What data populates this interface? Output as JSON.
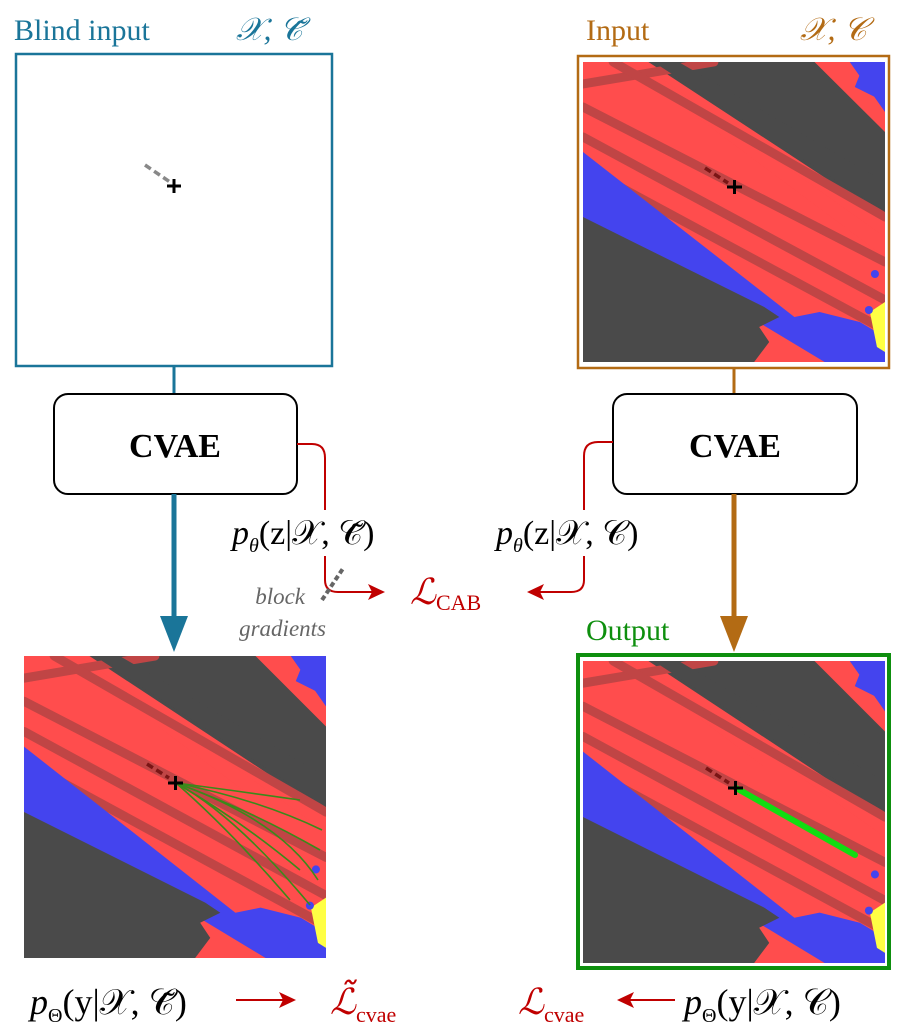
{
  "colors": {
    "blue": "#1a7599",
    "orange": "#b36b14",
    "green": "#0e8f0e",
    "red": "#c00000",
    "grey_text": "#666666",
    "map_red": "#ff4d4d",
    "map_stripe": "#c04545",
    "map_dark": "#4a4a4a",
    "map_blue": "#4444ee",
    "map_yellow": "#ffff44"
  },
  "left_panel": {
    "title": "Blind input",
    "context_symbol": "𝒳, 𝒞̃"
  },
  "right_panel": {
    "title": "Input",
    "context_symbol": "𝒳, 𝒞"
  },
  "cvae_left": {
    "label": "CVAE"
  },
  "cvae_right": {
    "label": "CVAE"
  },
  "prior_left": {
    "p": "p",
    "sub": "θ",
    "body": "(z|𝒳, 𝒞̃)"
  },
  "prior_right": {
    "p": "p",
    "sub": "θ",
    "body": "(z|𝒳, 𝒞)"
  },
  "loss_cab": {
    "main": "ℒ",
    "sub": "CAB"
  },
  "block_note": {
    "line1": "block",
    "line2": "gradients"
  },
  "output_label": "Output",
  "bottom_left": {
    "p": "p",
    "sub": "Θ",
    "body": "(y|𝒳, 𝒞̃)",
    "loss_main": "ℒ̃",
    "loss_sub": "cvae"
  },
  "bottom_right": {
    "p": "p",
    "sub": "Θ",
    "body": "(y|𝒳, 𝒞)",
    "loss_main": "ℒ",
    "loss_sub": "cvae"
  }
}
